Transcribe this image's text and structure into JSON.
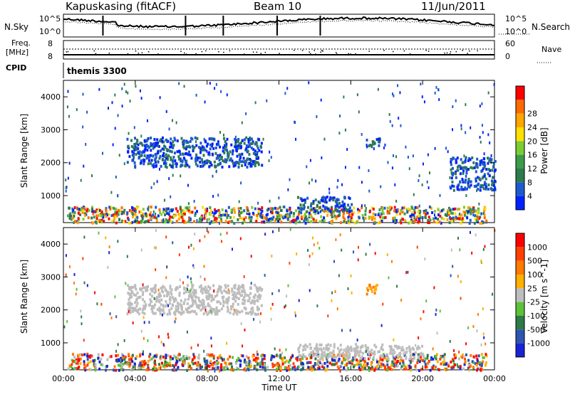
{
  "header": {
    "radar": "Kapuskasing (fitACF)",
    "beam": "Beam 10",
    "date": "11/Jun/2011"
  },
  "top_panels": {
    "nsky_label": "N.Sky",
    "nsky_ticks": [
      "10^5",
      "10^0"
    ],
    "nsearch_label": "N.Search",
    "nsearch_ticks": [
      "10^5",
      "10^0"
    ],
    "freq_label": "Freq.",
    "freq_unit": "[MHz]",
    "freq_ticks": [
      "8",
      "8"
    ],
    "nave_label": "Nave",
    "nave_ticks": [
      "60",
      "0"
    ],
    "cpid_label": "CPID",
    "cpid_value": "themis 3300"
  },
  "x_axis": {
    "title": "Time UT",
    "ticks": [
      "00:00",
      "04:00",
      "08:00",
      "12:00",
      "16:00",
      "20:00",
      "00:00"
    ]
  },
  "colors": {
    "power": [
      "#0022ff",
      "#1d5acd",
      "#2e7b4d",
      "#3d9b4a",
      "#7ccc34",
      "#ffe000",
      "#ffa500",
      "#ff6a00",
      "#ff0000"
    ],
    "velocity": [
      "#1a22d6",
      "#2e55b0",
      "#2d7b46",
      "#5bc23a",
      "#bdbdbd",
      "#ffb000",
      "#ff7a00",
      "#ff4000",
      "#ff0000"
    ]
  },
  "chart_data": [
    {
      "type": "heatmap",
      "ylabel": "Slant Range [km]",
      "ylim": [
        180,
        4500
      ],
      "yticks": [
        "1000",
        "2000",
        "3000",
        "4000"
      ],
      "xlim": [
        "00:00",
        "24:00"
      ],
      "colorbar": {
        "label": "Power [dB]",
        "ticks": [
          "4",
          "8",
          "12",
          "16",
          "20",
          "24",
          "28"
        ],
        "range": [
          0,
          30
        ]
      },
      "features": [
        {
          "t0": 0.2,
          "t1": 23.5,
          "r0": 200,
          "r1": 700,
          "level": "strong ground scatter"
        },
        {
          "t0": 3.5,
          "t1": 11.0,
          "r0": 1900,
          "r1": 2800,
          "level": "weak ionospheric band"
        },
        {
          "t0": 13.0,
          "t1": 16.0,
          "r0": 550,
          "r1": 1000,
          "level": "moderate band"
        },
        {
          "t0": 16.8,
          "t1": 17.6,
          "r0": 2500,
          "r1": 2800,
          "level": "patch"
        },
        {
          "t0": 21.5,
          "t1": 24.0,
          "r0": 1200,
          "r1": 2200,
          "level": "weak band"
        }
      ]
    },
    {
      "type": "heatmap",
      "ylabel": "Slant Range [km]",
      "ylim": [
        180,
        4500
      ],
      "yticks": [
        "1000",
        "2000",
        "3000",
        "4000"
      ],
      "xlim": [
        "00:00",
        "24:00"
      ],
      "colorbar": {
        "label": "Velocity [m s^-1]",
        "ticks": [
          "1000",
          "500",
          "100",
          "25",
          "-25",
          "-100",
          "-500",
          "-1000"
        ]
      },
      "features": [
        {
          "t0": 0.2,
          "t1": 23.5,
          "r0": 200,
          "r1": 700,
          "level": "mixed velocities"
        },
        {
          "t0": 3.5,
          "t1": 11.0,
          "r0": 1900,
          "r1": 2800,
          "level": "grey ground scatter band"
        },
        {
          "t0": 13.0,
          "t1": 20.0,
          "r0": 550,
          "r1": 1000,
          "level": "grey band"
        },
        {
          "t0": 16.8,
          "t1": 17.6,
          "r0": 2500,
          "r1": 2800,
          "level": "orange patch"
        }
      ]
    }
  ]
}
